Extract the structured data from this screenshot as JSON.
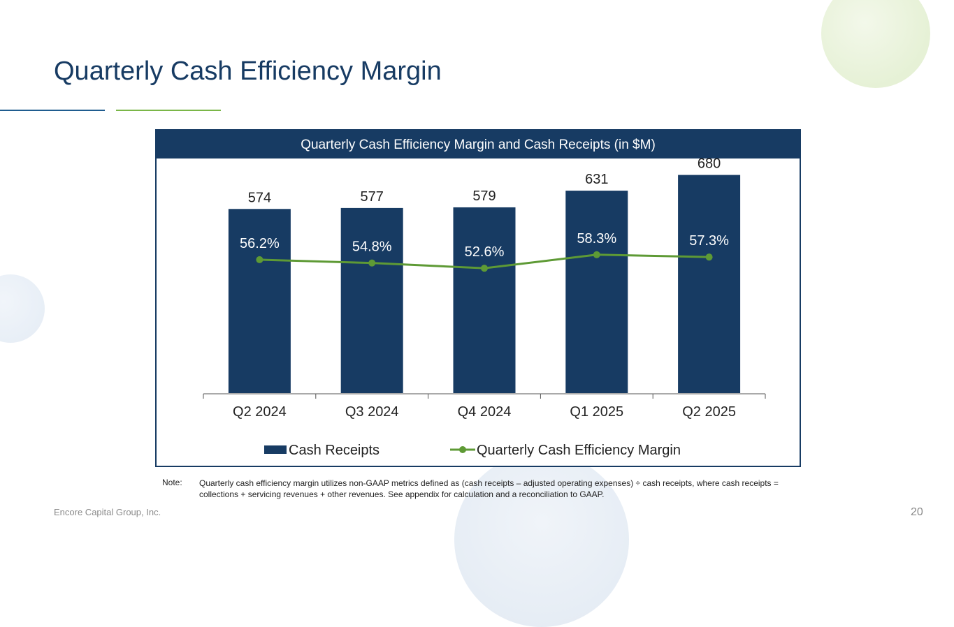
{
  "slide": {
    "title": "Quarterly Cash Efficiency Margin",
    "company": "Encore Capital Group, Inc.",
    "page_number": "20",
    "note_label": "Note:",
    "note_text": "Quarterly cash efficiency margin utilizes non-GAAP metrics defined as (cash receipts – adjusted operating expenses) ÷ cash receipts, where cash receipts = collections + servicing revenues + other revenues. See appendix for calculation and a reconciliation to GAAP."
  },
  "colors": {
    "bar": "#173b63",
    "line": "#5e9a35",
    "bar_label": "#222222",
    "line_label": "#ffffff"
  },
  "chart_data": {
    "type": "bar",
    "title": "Quarterly Cash Efficiency Margin and Cash Receipts (in $M)",
    "categories": [
      "Q2 2024",
      "Q3 2024",
      "Q4 2024",
      "Q1 2025",
      "Q2 2025"
    ],
    "series": [
      {
        "name": "Cash Receipts",
        "type": "bar",
        "values": [
          574,
          577,
          579,
          631,
          680
        ],
        "labels": [
          "574",
          "577",
          "579",
          "631",
          "680"
        ]
      },
      {
        "name": "Quarterly Cash Efficiency Margin",
        "type": "line",
        "values": [
          56.2,
          54.8,
          52.6,
          58.3,
          57.3
        ],
        "labels": [
          "56.2%",
          "54.8%",
          "52.6%",
          "58.3%",
          "57.3%"
        ]
      }
    ],
    "ylim_bar": [
      0,
      740
    ],
    "ylim_line": [
      0,
      100
    ],
    "legend_position": "bottom"
  }
}
